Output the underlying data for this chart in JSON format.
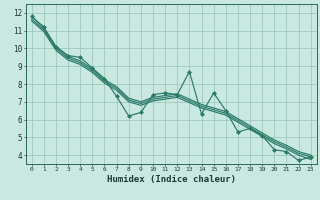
{
  "title": "",
  "xlabel": "Humidex (Indice chaleur)",
  "ylabel": "",
  "bg_color": "#c8e8e0",
  "grid_color": "#9ec8c0",
  "line_color": "#2a7a6a",
  "xlim": [
    -0.5,
    23.5
  ],
  "ylim": [
    3.5,
    12.5
  ],
  "xticks": [
    0,
    1,
    2,
    3,
    4,
    5,
    6,
    7,
    8,
    9,
    10,
    11,
    12,
    13,
    14,
    15,
    16,
    17,
    18,
    19,
    20,
    21,
    22,
    23
  ],
  "yticks": [
    4,
    5,
    6,
    7,
    8,
    9,
    10,
    11,
    12
  ],
  "series_jagged": [
    11.8,
    11.2,
    10.1,
    9.6,
    9.5,
    8.9,
    8.3,
    7.3,
    6.2,
    6.4,
    7.4,
    7.5,
    7.4,
    8.7,
    6.3,
    7.5,
    6.5,
    5.3,
    5.5,
    5.1,
    4.3,
    4.2,
    3.7,
    3.9
  ],
  "series_smooth": [
    [
      11.8,
      11.15,
      10.1,
      9.55,
      9.3,
      8.85,
      8.25,
      7.85,
      7.2,
      7.0,
      7.25,
      7.35,
      7.45,
      7.15,
      6.85,
      6.65,
      6.45,
      6.05,
      5.65,
      5.25,
      4.85,
      4.55,
      4.2,
      4.0
    ],
    [
      11.65,
      11.05,
      10.0,
      9.45,
      9.2,
      8.75,
      8.15,
      7.75,
      7.1,
      6.9,
      7.15,
      7.25,
      7.35,
      7.05,
      6.75,
      6.55,
      6.35,
      5.95,
      5.55,
      5.15,
      4.75,
      4.45,
      4.1,
      3.9
    ],
    [
      11.55,
      10.95,
      9.9,
      9.35,
      9.1,
      8.65,
      8.05,
      7.65,
      7.0,
      6.8,
      7.05,
      7.15,
      7.25,
      6.95,
      6.65,
      6.45,
      6.25,
      5.85,
      5.45,
      5.05,
      4.65,
      4.35,
      4.0,
      3.75
    ]
  ]
}
